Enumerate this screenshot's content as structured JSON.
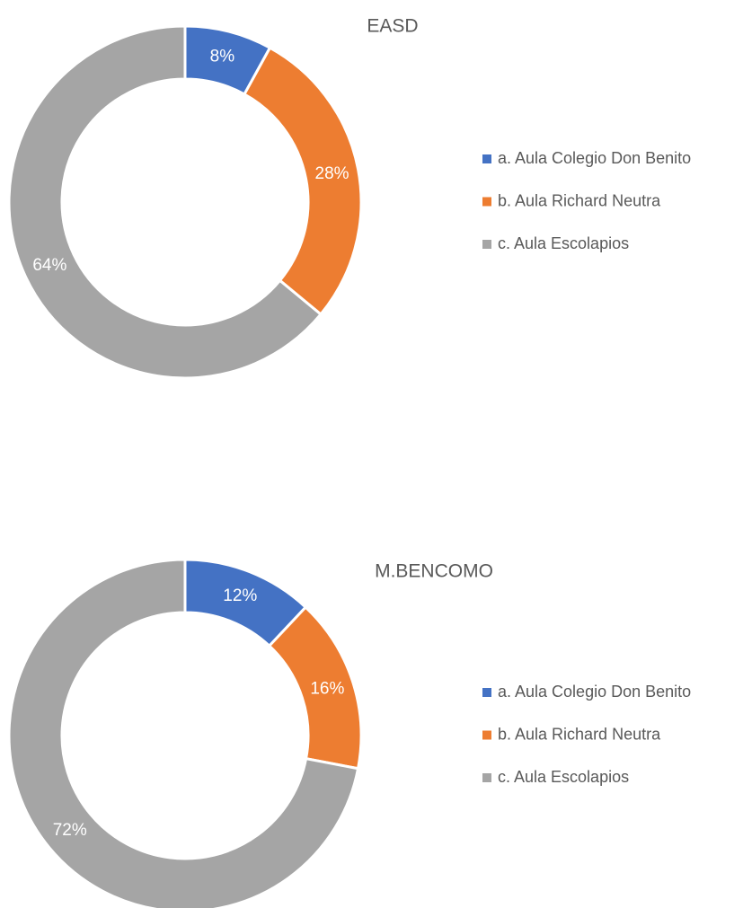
{
  "chart_data": [
    {
      "type": "donut",
      "title": "EASD",
      "categories": [
        "a. Aula Colegio Don Benito",
        "b. Aula Richard Neutra",
        "c. Aula Escolapios"
      ],
      "values": [
        8,
        28,
        64
      ],
      "value_labels": [
        "8%",
        "28%",
        "64%"
      ],
      "colors": [
        "#4472c4",
        "#ed7d31",
        "#a5a5a5"
      ],
      "legend": "right"
    },
    {
      "type": "donut",
      "title": "M.BENCOMO",
      "categories": [
        "a. Aula Colegio Don Benito",
        "b. Aula Richard Neutra",
        "c. Aula Escolapios"
      ],
      "values": [
        12,
        16,
        72
      ],
      "value_labels": [
        "12%",
        "16%",
        "72%"
      ],
      "colors": [
        "#4472c4",
        "#ed7d31",
        "#a5a5a5"
      ],
      "legend": "right"
    }
  ]
}
